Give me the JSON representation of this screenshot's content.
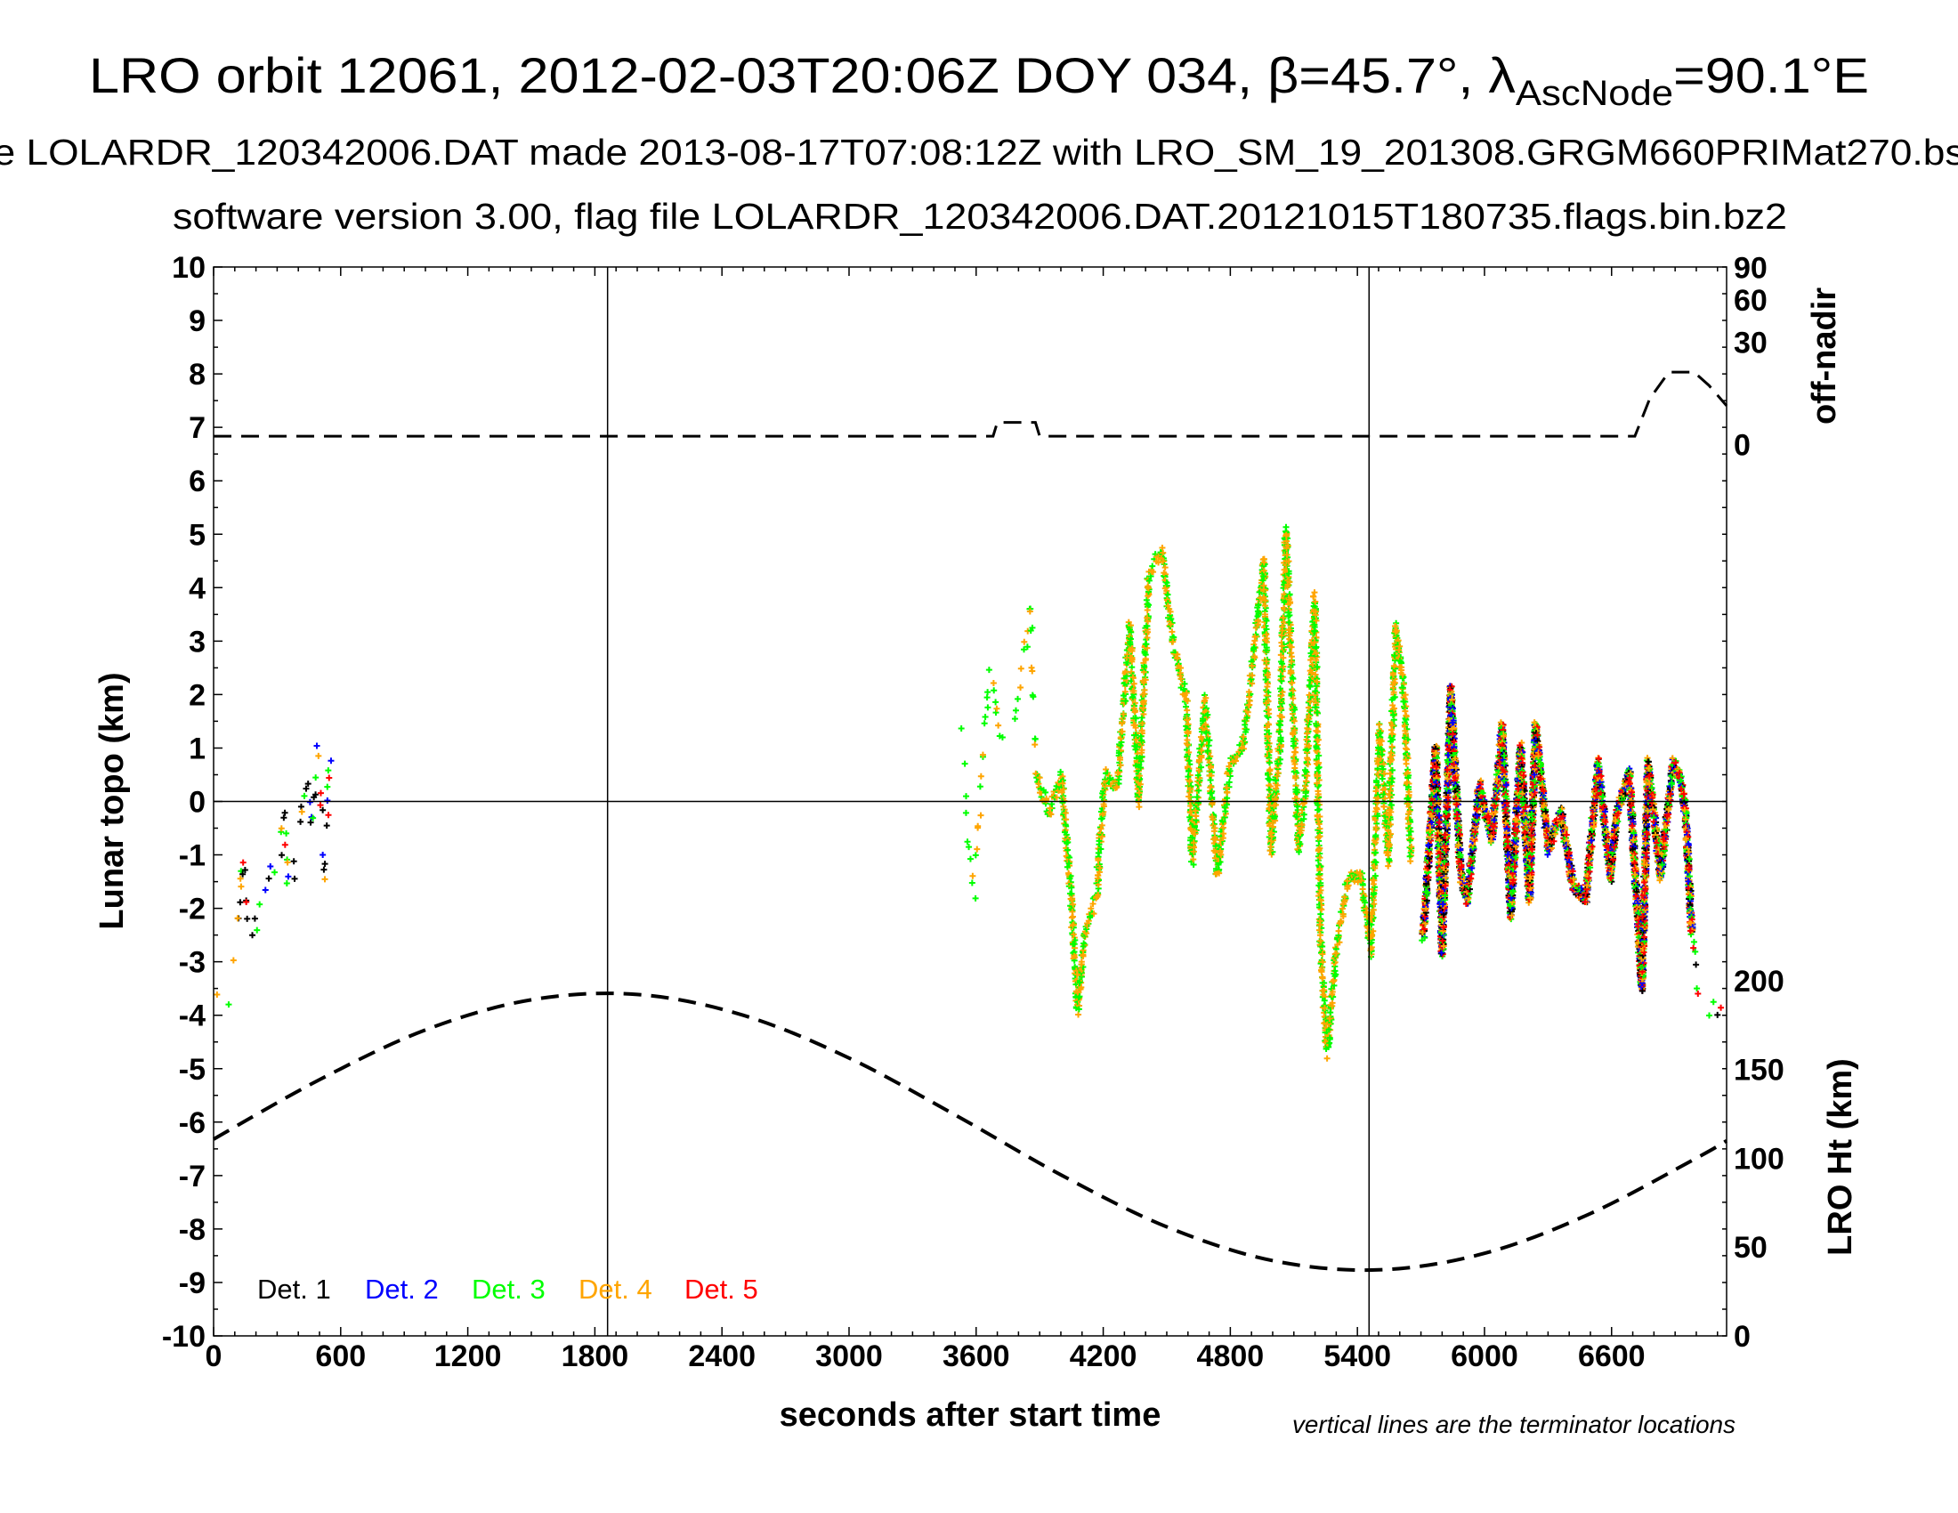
{
  "chart_data": {
    "type": "scatter",
    "title": {
      "main": "LRO orbit 12061, 2012-02-03T20:06Z DOY 034, β=45.7°, λ",
      "subscript": "AscNode",
      "end": "=90.1°E"
    },
    "subtitle_lines": [
      "e LOLARDR_120342006.DAT made 2013-08-17T07:08:12Z with LRO_SM_19_201308.GRGM660PRIMat270.bs",
      "software version 3.00, flag file LOLARDR_120342006.DAT.20121015T180735.flags.bin.bz2"
    ],
    "xlabel": "seconds after start time",
    "ylabel": "Lunar topo (km)",
    "ylabel_right_top": "off-nadir",
    "ylabel_right_bottom": "LRO Ht (km)",
    "note": "vertical lines are the terminator locations",
    "xlim": [
      0,
      7143
    ],
    "x_ticks": [
      0,
      600,
      1200,
      1800,
      2400,
      3000,
      3600,
      4200,
      4800,
      5400,
      6000,
      6600
    ],
    "ylim": [
      -10,
      10
    ],
    "y_ticks": [
      -10,
      -9,
      -8,
      -7,
      -6,
      -5,
      -4,
      -3,
      -2,
      -1,
      0,
      1,
      2,
      3,
      4,
      5,
      6,
      7,
      8,
      9,
      10
    ],
    "off_nadir_ticks": [
      0,
      30,
      60,
      90
    ],
    "off_nadir_scale": "sqrt",
    "height_ticks": [
      0,
      50,
      100,
      150,
      200
    ],
    "height_lim": [
      0,
      602
    ],
    "grid": false,
    "terminators_s": [
      1860,
      5455
    ],
    "legend_placement": "bottom-left",
    "legend": [
      {
        "name": "Det. 1",
        "color": "#000000"
      },
      {
        "name": "Det. 2",
        "color": "#0000ff"
      },
      {
        "name": "Det. 3",
        "color": "#00ff00"
      },
      {
        "name": "Det. 4",
        "color": "#ffa500"
      },
      {
        "name": "Det. 5",
        "color": "#ff0000"
      }
    ],
    "topo_segments": [
      {
        "detectors": [
          1,
          1,
          1,
          5,
          3,
          2,
          4
        ],
        "sparse": true,
        "points": [
          [
            0,
            -3.9
          ],
          [
            88,
            -3.6
          ],
          [
            112,
            -2.3
          ],
          [
            141,
            -1.1
          ],
          [
            170,
            -2.6
          ],
          [
            200,
            -2.2
          ],
          [
            259,
            -1.6
          ],
          [
            318,
            -0.9
          ],
          [
            330,
            0.0
          ],
          [
            350,
            -1.8
          ],
          [
            377,
            -1.4
          ],
          [
            436,
            0.3
          ],
          [
            465,
            -0.4
          ],
          [
            495,
            1.0
          ],
          [
            524,
            -1.4
          ],
          [
            554,
            1.0
          ]
        ]
      },
      {
        "detectors": [
          3,
          4,
          3
        ],
        "sparse": true,
        "points": [
          [
            3531,
            1.2
          ],
          [
            3560,
            -0.4
          ],
          [
            3589,
            -1.8
          ],
          [
            3666,
            2.6
          ],
          [
            3707,
            1.2
          ],
          [
            3766,
            1.0
          ],
          [
            3813,
            2.1
          ],
          [
            3855,
            3.8
          ],
          [
            3884,
            0.5
          ]
        ]
      },
      {
        "detectors": [
          3,
          4
        ],
        "sparse": false,
        "points": [
          [
            3884,
            0.5
          ],
          [
            3943,
            -0.2
          ],
          [
            4002,
            0.5
          ],
          [
            4049,
            -1.8
          ],
          [
            4079,
            -3.9
          ],
          [
            4120,
            -2.3
          ],
          [
            4167,
            -1.8
          ],
          [
            4208,
            0.5
          ],
          [
            4267,
            0.3
          ],
          [
            4326,
            3.3
          ],
          [
            4367,
            0.0
          ],
          [
            4415,
            4.2
          ],
          [
            4474,
            4.7
          ],
          [
            4532,
            2.9
          ],
          [
            4591,
            1.9
          ],
          [
            4621,
            -1.1
          ],
          [
            4680,
            1.9
          ],
          [
            4739,
            -1.4
          ],
          [
            4798,
            0.7
          ],
          [
            4857,
            1.0
          ],
          [
            4916,
            2.9
          ],
          [
            4957,
            4.5
          ],
          [
            4992,
            -0.9
          ],
          [
            5033,
            1.0
          ],
          [
            5063,
            5.1
          ],
          [
            5122,
            -0.9
          ],
          [
            5151,
            0.0
          ],
          [
            5198,
            3.8
          ],
          [
            5228,
            -2.8
          ],
          [
            5257,
            -4.7
          ],
          [
            5299,
            -2.8
          ],
          [
            5358,
            -1.4
          ],
          [
            5417,
            -1.4
          ],
          [
            5464,
            -2.8
          ],
          [
            5505,
            1.4
          ],
          [
            5546,
            -1.1
          ],
          [
            5581,
            3.3
          ],
          [
            5623,
            1.9
          ],
          [
            5652,
            -1.1
          ]
        ]
      },
      {
        "detectors": [
          1,
          2,
          3,
          4,
          5
        ],
        "sparse": false,
        "points": [
          [
            5711,
            -2.5
          ],
          [
            5770,
            1.0
          ],
          [
            5800,
            -2.8
          ],
          [
            5841,
            2.1
          ],
          [
            5888,
            -1.4
          ],
          [
            5918,
            -1.8
          ],
          [
            5977,
            0.3
          ],
          [
            6035,
            -0.7
          ],
          [
            6083,
            1.4
          ],
          [
            6124,
            -2.1
          ],
          [
            6171,
            1.0
          ],
          [
            6212,
            -1.8
          ],
          [
            6242,
            1.4
          ],
          [
            6301,
            -0.9
          ],
          [
            6360,
            -0.2
          ],
          [
            6419,
            -1.6
          ],
          [
            6478,
            -1.8
          ],
          [
            6536,
            0.7
          ],
          [
            6595,
            -1.4
          ],
          [
            6625,
            -0.2
          ],
          [
            6684,
            0.5
          ],
          [
            6743,
            -3.5
          ],
          [
            6772,
            0.7
          ],
          [
            6831,
            -1.4
          ],
          [
            6890,
            0.7
          ],
          [
            6920,
            0.5
          ],
          [
            6949,
            -0.2
          ],
          [
            6979,
            -2.5
          ]
        ]
      },
      {
        "detectors": [
          1,
          1,
          5,
          3
        ],
        "sparse": true,
        "points": [
          [
            6979,
            -2.5
          ],
          [
            7008,
            -3.7
          ],
          [
            7060,
            -3.8
          ],
          [
            7143,
            -3.8
          ]
        ]
      }
    ],
    "off_nadir_deg": [
      [
        0,
        0.2
      ],
      [
        3680,
        0.2
      ],
      [
        3700,
        1.4
      ],
      [
        3880,
        1.4
      ],
      [
        3900,
        0.2
      ],
      [
        6710,
        0.2
      ],
      [
        6780,
        6
      ],
      [
        6870,
        15
      ],
      [
        6990,
        15
      ],
      [
        7060,
        10
      ],
      [
        7143,
        4.3
      ]
    ],
    "lro_height_km": [
      [
        0,
        110.8
      ],
      [
        500,
        144.3
      ],
      [
        1000,
        172.3
      ],
      [
        1500,
        189.3
      ],
      [
        2000,
        192.3
      ],
      [
        2500,
        180.6
      ],
      [
        3000,
        156.5
      ],
      [
        3500,
        124.5
      ],
      [
        4000,
        90.7
      ],
      [
        4500,
        61.4
      ],
      [
        5000,
        42.4
      ],
      [
        5500,
        37.2
      ],
      [
        6000,
        46.5
      ],
      [
        6500,
        68.9
      ],
      [
        7000,
        100.1
      ],
      [
        7143,
        109.9
      ]
    ]
  }
}
